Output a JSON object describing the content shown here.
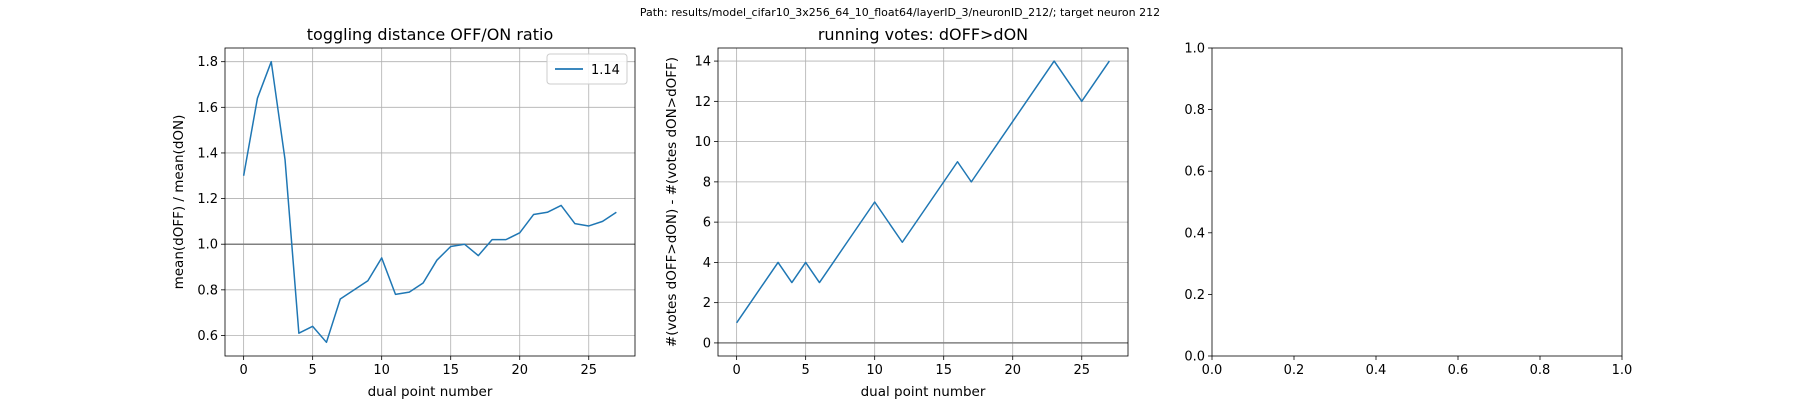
{
  "figure": {
    "suptitle": "Path: results/model_cifar10_3x256_64_10_float64/layerID_3/neuronID_212/; target neuron 212"
  },
  "chart_data": [
    {
      "type": "line",
      "title": "toggling distance OFF/ON ratio",
      "xlabel": "dual point number",
      "ylabel": "mean(dOFF) / mean(dON)",
      "xlim": [
        -1.35,
        28.35
      ],
      "ylim": [
        0.51,
        1.86
      ],
      "xticks": [
        0,
        5,
        10,
        15,
        20,
        25
      ],
      "yticks": [
        0.6,
        0.8,
        1.0,
        1.2,
        1.4,
        1.6,
        1.8
      ],
      "ytick_labels": [
        "0.6",
        "0.8",
        "1.0",
        "1.2",
        "1.4",
        "1.6",
        "1.8"
      ],
      "grid": true,
      "hline": 1.0,
      "legend": "top-right",
      "series": [
        {
          "name": "1.14",
          "color": "#1f77b4",
          "x": [
            0,
            1,
            2,
            3,
            4,
            5,
            6,
            7,
            8,
            9,
            10,
            11,
            12,
            13,
            14,
            15,
            16,
            17,
            18,
            19,
            20,
            21,
            22,
            23,
            24,
            25,
            26,
            27
          ],
          "y": [
            1.3,
            1.64,
            1.8,
            1.37,
            0.61,
            0.64,
            0.57,
            0.76,
            0.8,
            0.84,
            0.94,
            0.78,
            0.79,
            0.83,
            0.93,
            0.99,
            1.0,
            0.95,
            1.02,
            1.02,
            1.05,
            1.13,
            1.14,
            1.17,
            1.09,
            1.08,
            1.1,
            1.14
          ]
        }
      ]
    },
    {
      "type": "line",
      "title": "running votes: dOFF>dON",
      "xlabel": "dual point number",
      "ylabel": "#(votes dOFF>dON) - #(votes dON>dOFF)",
      "xlim": [
        -1.35,
        28.35
      ],
      "ylim": [
        -0.65,
        14.65
      ],
      "xticks": [
        0,
        5,
        10,
        15,
        20,
        25
      ],
      "yticks": [
        0,
        2,
        4,
        6,
        8,
        10,
        12,
        14
      ],
      "ytick_labels": [
        "0",
        "2",
        "4",
        "6",
        "8",
        "10",
        "12",
        "14"
      ],
      "grid": true,
      "hline": 0,
      "series": [
        {
          "color": "#1f77b4",
          "x": [
            0,
            1,
            2,
            3,
            4,
            5,
            6,
            7,
            8,
            9,
            10,
            11,
            12,
            13,
            14,
            15,
            16,
            17,
            18,
            19,
            20,
            21,
            22,
            23,
            24,
            25,
            26,
            27
          ],
          "y": [
            1,
            2,
            3,
            4,
            3,
            4,
            3,
            4,
            5,
            6,
            7,
            6,
            5,
            6,
            7,
            8,
            9,
            8,
            9,
            10,
            11,
            12,
            13,
            14,
            13,
            12,
            13,
            14
          ]
        }
      ]
    },
    {
      "type": "line",
      "title": "",
      "xlabel": "",
      "ylabel": "",
      "xlim": [
        0,
        1
      ],
      "ylim": [
        0,
        1
      ],
      "xticks": [
        0,
        0.2,
        0.4,
        0.6,
        0.8,
        1.0
      ],
      "xtick_labels": [
        "0.0",
        "0.2",
        "0.4",
        "0.6",
        "0.8",
        "1.0"
      ],
      "yticks": [
        0,
        0.2,
        0.4,
        0.6,
        0.8,
        1.0
      ],
      "ytick_labels": [
        "0.0",
        "0.2",
        "0.4",
        "0.6",
        "0.8",
        "1.0"
      ],
      "grid": false,
      "series": []
    }
  ]
}
